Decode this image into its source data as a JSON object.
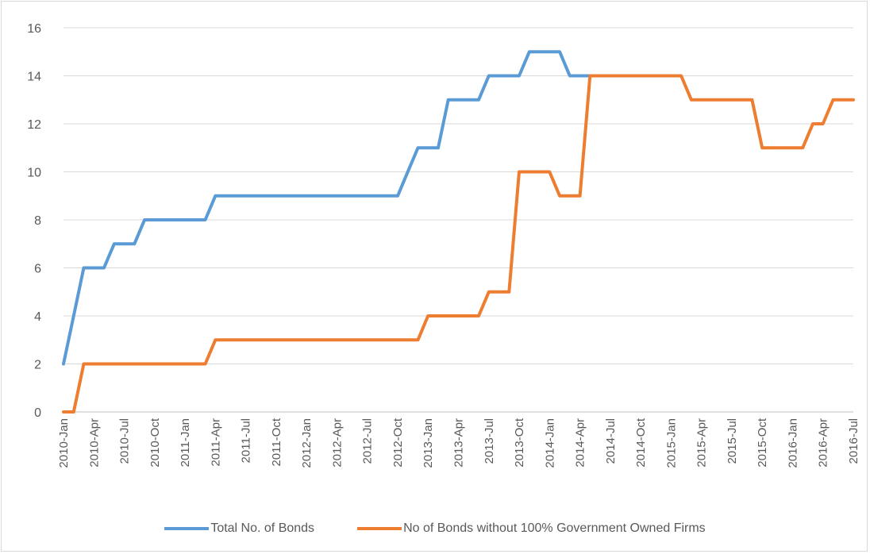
{
  "chart_data": {
    "type": "line",
    "title": "",
    "xlabel": "",
    "ylabel": "",
    "ylim": [
      0,
      16
    ],
    "yticks": [
      0,
      2,
      4,
      6,
      8,
      10,
      12,
      14,
      16
    ],
    "grid": true,
    "legend_position": "bottom",
    "x": [
      "2010-Jan",
      "2010-Feb",
      "2010-Mar",
      "2010-Apr",
      "2010-May",
      "2010-Jun",
      "2010-Jul",
      "2010-Aug",
      "2010-Sep",
      "2010-Oct",
      "2010-Nov",
      "2010-Dec",
      "2011-Jan",
      "2011-Feb",
      "2011-Mar",
      "2011-Apr",
      "2011-May",
      "2011-Jun",
      "2011-Jul",
      "2011-Aug",
      "2011-Sep",
      "2011-Oct",
      "2011-Nov",
      "2011-Dec",
      "2012-Jan",
      "2012-Feb",
      "2012-Mar",
      "2012-Apr",
      "2012-May",
      "2012-Jun",
      "2012-Jul",
      "2012-Aug",
      "2012-Sep",
      "2012-Oct",
      "2012-Nov",
      "2012-Dec",
      "2013-Jan",
      "2013-Feb",
      "2013-Mar",
      "2013-Apr",
      "2013-May",
      "2013-Jun",
      "2013-Jul",
      "2013-Aug",
      "2013-Sep",
      "2013-Oct",
      "2013-Nov",
      "2013-Dec",
      "2014-Jan",
      "2014-Feb",
      "2014-Mar",
      "2014-Apr",
      "2014-May",
      "2014-Jun",
      "2014-Jul",
      "2014-Aug",
      "2014-Sep",
      "2014-Oct",
      "2014-Nov",
      "2014-Dec",
      "2015-Jan",
      "2015-Feb",
      "2015-Mar",
      "2015-Apr",
      "2015-May",
      "2015-Jun",
      "2015-Jul",
      "2015-Aug",
      "2015-Sep",
      "2015-Oct",
      "2015-Nov",
      "2015-Dec",
      "2016-Jan",
      "2016-Feb",
      "2016-Mar",
      "2016-Apr",
      "2016-May",
      "2016-Jun",
      "2016-Jul"
    ],
    "tick_labels": [
      "2010-Jan",
      "2010-Apr",
      "2010-Jul",
      "2010-Oct",
      "2011-Jan",
      "2011-Apr",
      "2011-Jul",
      "2011-Oct",
      "2012-Jan",
      "2012-Apr",
      "2012-Jul",
      "2012-Oct",
      "2013-Jan",
      "2013-Apr",
      "2013-Jul",
      "2013-Oct",
      "2014-Jan",
      "2014-Apr",
      "2014-Jul",
      "2014-Oct",
      "2015-Jan",
      "2015-Apr",
      "2015-Jul",
      "2015-Oct",
      "2016-Jan",
      "2016-Apr",
      "2016-Jul"
    ],
    "series": [
      {
        "name": "Total No. of Bonds",
        "color": "#5b9bd5",
        "values": [
          2,
          4,
          6,
          6,
          6,
          7,
          7,
          7,
          8,
          8,
          8,
          8,
          8,
          8,
          8,
          9,
          9,
          9,
          9,
          9,
          9,
          9,
          9,
          9,
          9,
          9,
          9,
          9,
          9,
          9,
          9,
          9,
          9,
          9,
          10,
          11,
          11,
          11,
          13,
          13,
          13,
          13,
          14,
          14,
          14,
          14,
          15,
          15,
          15,
          15,
          14,
          14,
          14,
          14,
          14,
          null,
          null,
          null,
          null,
          null,
          null,
          null,
          null,
          null,
          null,
          null,
          null,
          null,
          null,
          null,
          null,
          null,
          null,
          null,
          null,
          null,
          null,
          null,
          null
        ]
      },
      {
        "name": "No of Bonds without 100% Government Owned Firms",
        "color": "#ed7d31",
        "values": [
          0,
          0,
          2,
          2,
          2,
          2,
          2,
          2,
          2,
          2,
          2,
          2,
          2,
          2,
          2,
          3,
          3,
          3,
          3,
          3,
          3,
          3,
          3,
          3,
          3,
          3,
          3,
          3,
          3,
          3,
          3,
          3,
          3,
          3,
          3,
          3,
          4,
          4,
          4,
          4,
          4,
          4,
          5,
          5,
          5,
          10,
          10,
          10,
          10,
          9,
          9,
          9,
          14,
          14,
          14,
          14,
          14,
          14,
          14,
          14,
          14,
          14,
          13,
          13,
          13,
          13,
          13,
          13,
          13,
          11,
          11,
          11,
          11,
          11,
          12,
          12,
          13,
          13,
          13
        ]
      }
    ]
  },
  "legend": {
    "series_0": "Total No. of Bonds",
    "series_1": "No of Bonds without 100% Government Owned Firms"
  }
}
